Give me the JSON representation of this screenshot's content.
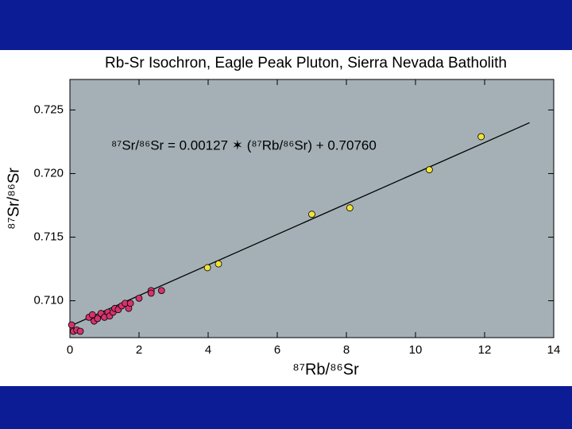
{
  "chart_data": {
    "type": "scatter",
    "title": "Rb-Sr Isochron, Eagle Peak Pluton, Sierra Nevada Batholith",
    "annotation": "⁸⁷Sr/⁸⁶Sr = 0.00127 ✶ (⁸⁷Rb/⁸⁶Sr) + 0.70760",
    "x_label": "⁸⁷Rb/⁸⁶Sr",
    "y_label": "⁸⁷Sr/⁸⁶Sr",
    "xlim": [
      0,
      14
    ],
    "ylim": [
      0.7071,
      0.7274
    ],
    "xticks": [
      0,
      2,
      4,
      6,
      8,
      10,
      12,
      14
    ],
    "yticks": [
      {
        "value": 0.71,
        "label": "0.710"
      },
      0.715,
      {
        "value": 0.72,
        "label": "0.720"
      },
      0.725
    ],
    "series": [
      {
        "color": "#d6336c",
        "x": [
          0.05,
          0.1,
          0.2,
          0.3,
          0.55,
          0.65,
          0.7,
          0.8,
          0.9,
          1.0,
          1.1,
          1.15,
          1.25,
          1.3,
          1.4,
          1.5,
          1.6,
          1.7,
          1.75,
          2.0,
          2.35,
          2.35,
          2.65
        ],
        "values": [
          0.7081,
          0.7076,
          0.7077,
          0.7076,
          0.7087,
          0.7089,
          0.7084,
          0.7086,
          0.709,
          0.7087,
          0.7091,
          0.7088,
          0.7091,
          0.7094,
          0.7093,
          0.7096,
          0.7098,
          0.7094,
          0.7098,
          0.7102,
          0.7108,
          0.7106,
          0.7108
        ]
      },
      {
        "color": "#f2e33a",
        "x": [
          3.98,
          4.3,
          7.0,
          8.1,
          10.4,
          11.9
        ],
        "values": [
          0.7126,
          0.7129,
          0.7168,
          0.7173,
          0.7203,
          0.7229
        ]
      }
    ],
    "lines": [
      {
        "color": "#000000",
        "x": [
          0,
          13.3
        ],
        "values": [
          0.708,
          0.724
        ]
      }
    ]
  }
}
